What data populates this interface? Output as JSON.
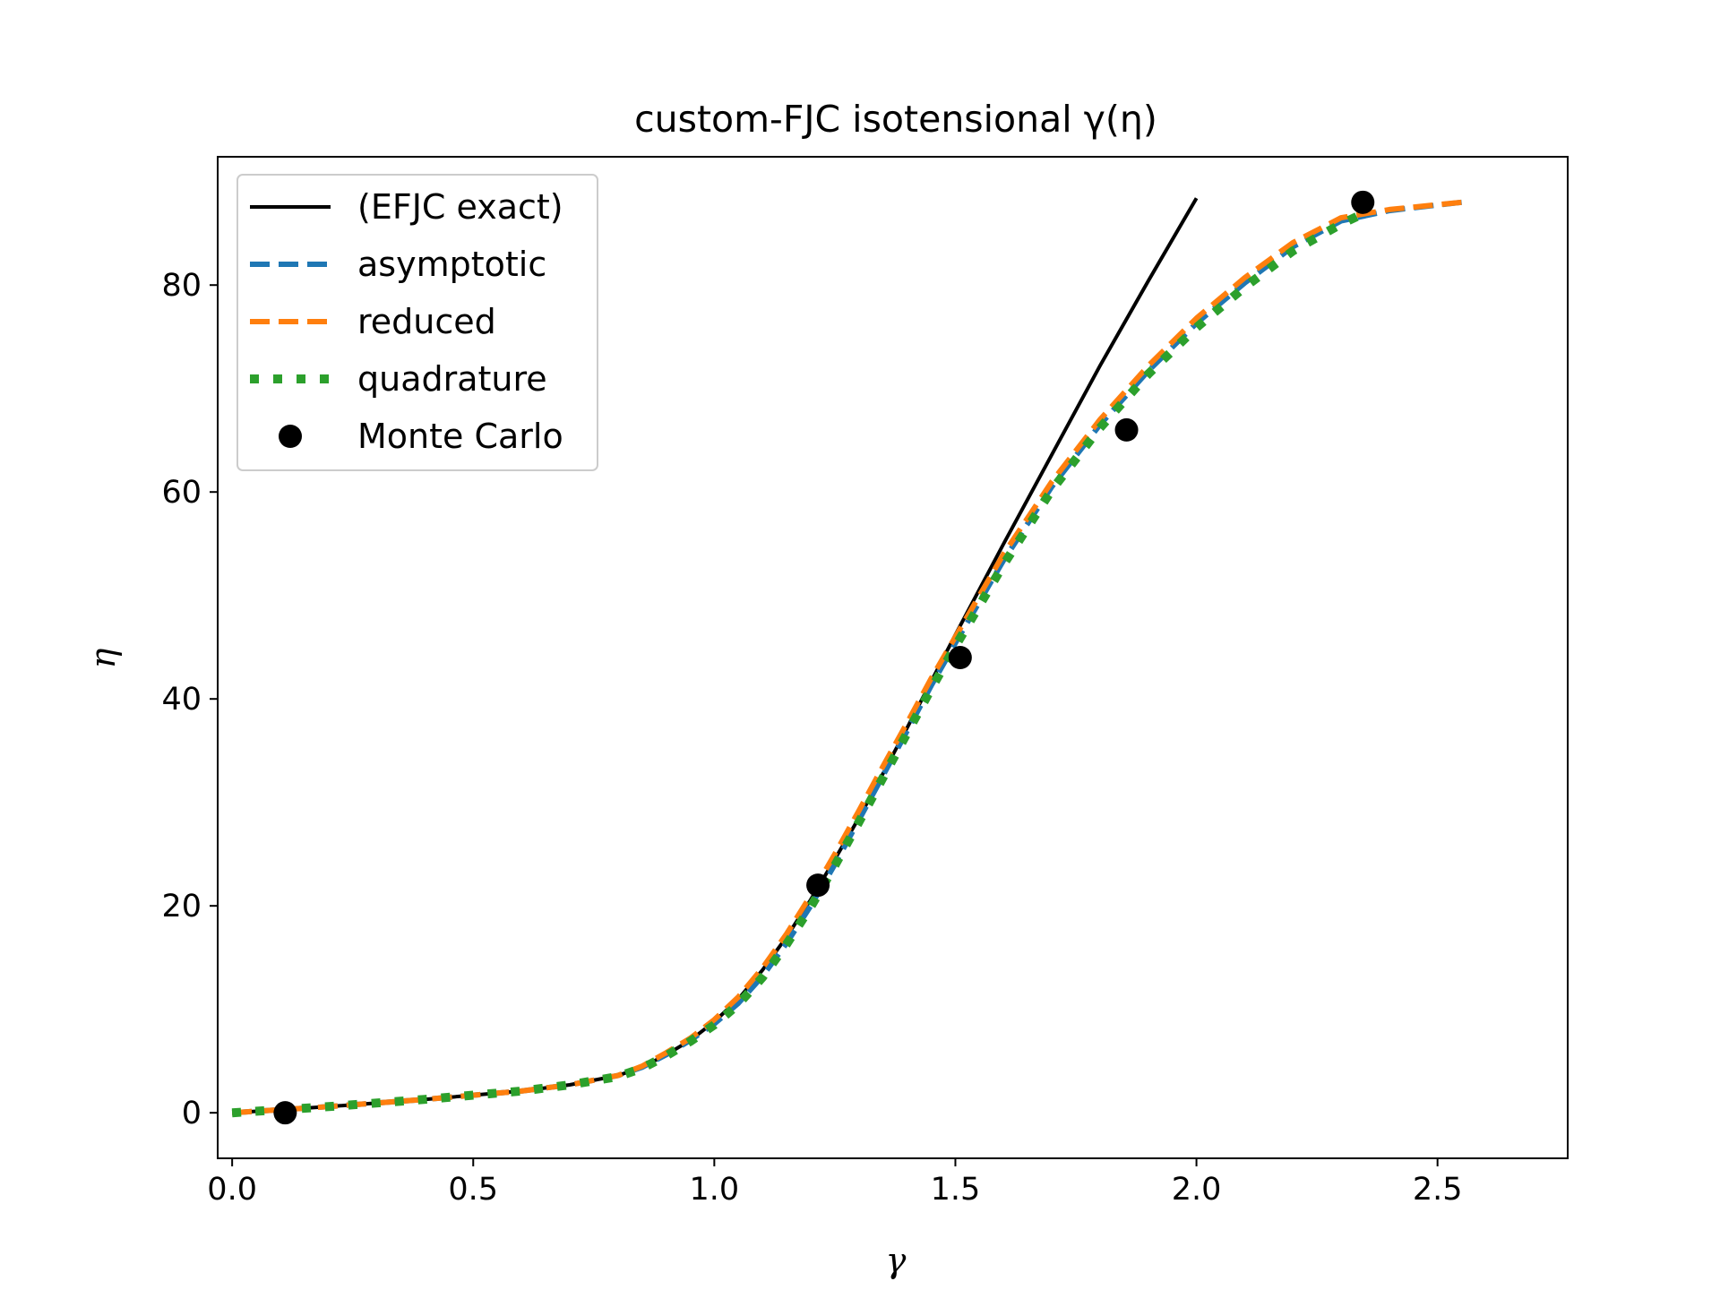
{
  "chart_data": {
    "type": "line",
    "title": "custom-FJC isotensional γ(η)",
    "xlabel": "γ",
    "ylabel": "η",
    "xlim": [
      -0.03,
      2.77
    ],
    "ylim": [
      -4.4,
      92.4
    ],
    "xticks": [
      0.0,
      0.5,
      1.0,
      1.5,
      2.0,
      2.5
    ],
    "xtick_labels": [
      "0.0",
      "0.5",
      "1.0",
      "1.5",
      "2.0",
      "2.5"
    ],
    "yticks": [
      0,
      20,
      40,
      60,
      80
    ],
    "ytick_labels": [
      "0",
      "20",
      "40",
      "60",
      "80"
    ],
    "grid": false,
    "legend_position": "top-left",
    "series": [
      {
        "name": "(EFJC exact)",
        "style": "solid",
        "color": "#000000",
        "x": [
          0.0,
          0.2,
          0.4,
          0.6,
          0.7,
          0.8,
          0.85,
          0.9,
          0.95,
          1.0,
          1.05,
          1.1,
          1.15,
          1.2,
          1.25,
          1.3,
          1.35,
          1.4,
          1.5,
          1.6,
          1.7,
          1.8,
          1.9,
          2.0
        ],
        "y": [
          0.0,
          0.6,
          1.3,
          2.1,
          2.7,
          3.6,
          4.4,
          5.6,
          7.0,
          8.8,
          11.0,
          13.8,
          17.0,
          20.6,
          24.5,
          28.5,
          32.8,
          37.2,
          46.2,
          55.0,
          63.6,
          72.2,
          80.4,
          88.4
        ]
      },
      {
        "name": "asymptotic",
        "style": "dashed",
        "color": "#1f77b4",
        "x": [
          0.0,
          0.2,
          0.4,
          0.6,
          0.7,
          0.8,
          0.85,
          0.9,
          0.95,
          1.0,
          1.05,
          1.1,
          1.15,
          1.2,
          1.25,
          1.3,
          1.35,
          1.4,
          1.45,
          1.5,
          1.6,
          1.7,
          1.8,
          1.9,
          2.0,
          2.1,
          2.2,
          2.3,
          2.4,
          2.55
        ],
        "y": [
          0.0,
          0.6,
          1.3,
          2.1,
          2.7,
          3.6,
          4.4,
          5.6,
          7.0,
          8.6,
          10.6,
          13.2,
          16.4,
          20.0,
          24.0,
          28.3,
          32.6,
          36.9,
          41.3,
          45.4,
          53.4,
          60.5,
          66.5,
          71.7,
          76.3,
          80.2,
          83.7,
          86.2,
          87.2,
          88.0
        ]
      },
      {
        "name": "reduced",
        "style": "dashed",
        "color": "#ff7f0e",
        "x": [
          0.0,
          0.2,
          0.4,
          0.6,
          0.7,
          0.8,
          0.85,
          0.9,
          0.95,
          1.0,
          1.05,
          1.1,
          1.15,
          1.2,
          1.25,
          1.3,
          1.35,
          1.4,
          1.45,
          1.5,
          1.6,
          1.7,
          1.8,
          1.9,
          2.0,
          2.1,
          2.2,
          2.3,
          2.4,
          2.55
        ],
        "y": [
          0.0,
          0.6,
          1.3,
          2.1,
          2.7,
          3.6,
          4.5,
          5.8,
          7.2,
          9.0,
          11.2,
          14.0,
          17.3,
          21.0,
          25.0,
          29.2,
          33.5,
          37.7,
          42.0,
          46.0,
          54.0,
          61.0,
          67.0,
          72.2,
          76.8,
          80.7,
          84.1,
          86.5,
          87.3,
          88.0
        ]
      },
      {
        "name": "quadrature",
        "style": "dotted",
        "color": "#2ca02c",
        "x": [
          0.0,
          0.2,
          0.4,
          0.6,
          0.7,
          0.8,
          0.85,
          0.9,
          0.95,
          1.0,
          1.05,
          1.1,
          1.15,
          1.2,
          1.25,
          1.3,
          1.35,
          1.4,
          1.45,
          1.5,
          1.6,
          1.7,
          1.8,
          1.9,
          2.0,
          2.1,
          2.2,
          2.3,
          2.35
        ],
        "y": [
          0.0,
          0.6,
          1.3,
          2.1,
          2.7,
          3.5,
          4.3,
          5.5,
          6.9,
          8.5,
          10.5,
          13.1,
          16.3,
          19.9,
          23.9,
          28.1,
          32.4,
          36.7,
          41.0,
          45.1,
          53.0,
          60.2,
          66.2,
          71.4,
          75.9,
          79.8,
          83.3,
          85.9,
          87.0
        ]
      },
      {
        "name": "Monte Carlo",
        "style": "markers",
        "color": "#000000",
        "x": [
          0.11,
          1.215,
          1.51,
          1.855,
          2.345
        ],
        "y": [
          0.0,
          22.0,
          44.0,
          66.0,
          88.0
        ]
      }
    ]
  }
}
